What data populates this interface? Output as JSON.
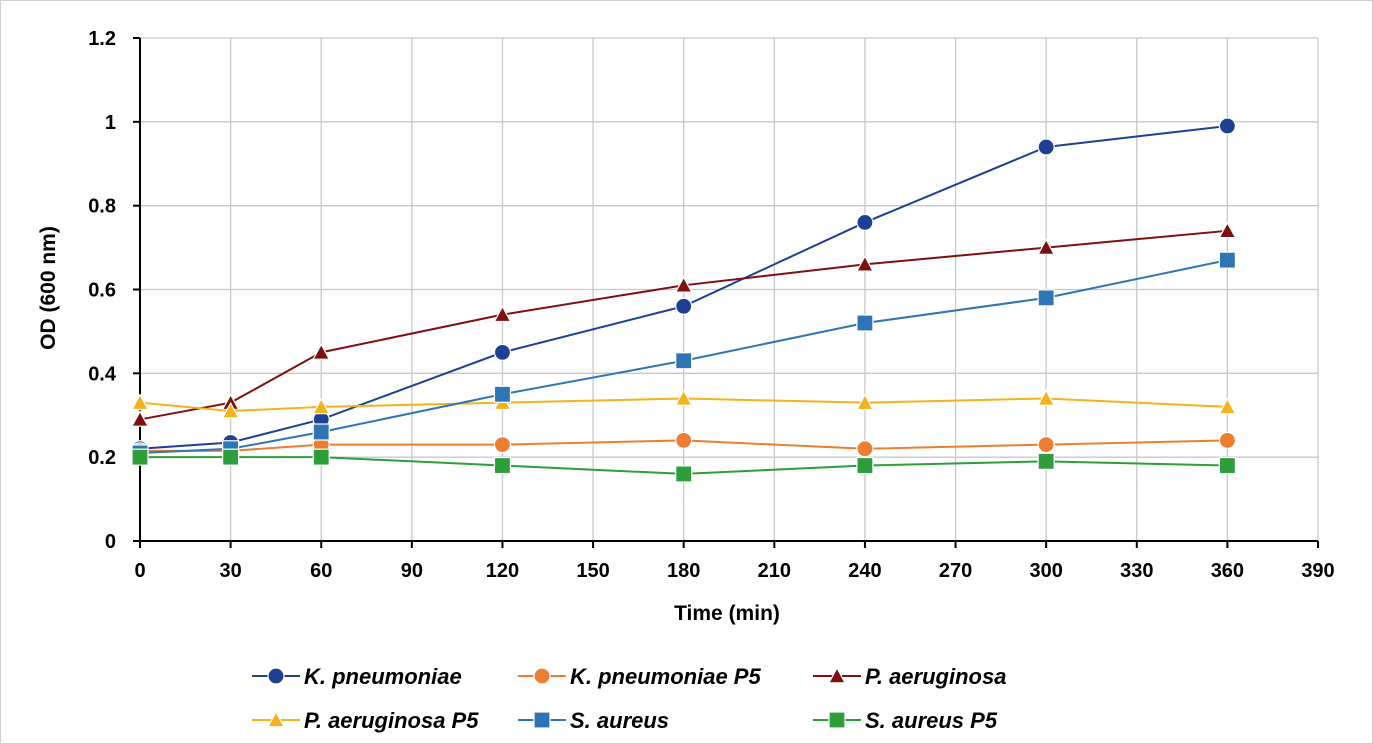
{
  "chart_data": {
    "type": "line",
    "title": "",
    "xlabel": "Time (min)",
    "ylabel": "OD (600 nm)",
    "xlim": [
      0,
      390
    ],
    "ylim": [
      0,
      1.2
    ],
    "x_ticks": [
      0,
      30,
      60,
      90,
      120,
      150,
      180,
      210,
      240,
      270,
      300,
      330,
      360,
      390
    ],
    "y_ticks": [
      0,
      0.2,
      0.4,
      0.6,
      0.8,
      1,
      1.2
    ],
    "y_tick_labels": [
      "0",
      "0.2",
      "0.4",
      "0.6",
      "0.8",
      "1",
      "1.2"
    ],
    "grid": true,
    "legend_position": "bottom",
    "x": [
      0,
      30,
      60,
      120,
      180,
      240,
      300,
      360
    ],
    "series": [
      {
        "name": "K. pneumoniae",
        "color": "#1f3f94",
        "marker": "circle",
        "values": [
          0.22,
          0.235,
          0.29,
          0.45,
          0.56,
          0.76,
          0.94,
          0.99
        ]
      },
      {
        "name": "K. pneumoniae P5",
        "color": "#ed7d31",
        "marker": "circle",
        "values": [
          0.215,
          0.215,
          0.23,
          0.23,
          0.24,
          0.22,
          0.23,
          0.24
        ]
      },
      {
        "name": "P. aeruginosa",
        "color": "#7f1010",
        "marker": "triangle",
        "values": [
          0.29,
          0.33,
          0.45,
          0.54,
          0.61,
          0.66,
          0.7,
          0.74
        ]
      },
      {
        "name": "P. aeruginosa P5",
        "color": "#f5b21b",
        "marker": "triangle",
        "values": [
          0.33,
          0.31,
          0.32,
          0.33,
          0.34,
          0.33,
          0.34,
          0.32
        ]
      },
      {
        "name": "S. aureus",
        "color": "#2e75b6",
        "marker": "square",
        "values": [
          0.21,
          0.22,
          0.26,
          0.35,
          0.43,
          0.52,
          0.58,
          0.67
        ]
      },
      {
        "name": "S. aureus P5",
        "color": "#2e9e3a",
        "marker": "square",
        "values": [
          0.2,
          0.2,
          0.2,
          0.18,
          0.16,
          0.18,
          0.19,
          0.18
        ]
      }
    ]
  }
}
